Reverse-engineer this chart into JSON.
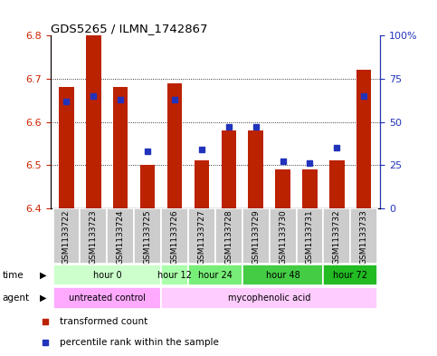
{
  "title": "GDS5265 / ILMN_1742867",
  "samples": [
    "GSM1133722",
    "GSM1133723",
    "GSM1133724",
    "GSM1133725",
    "GSM1133726",
    "GSM1133727",
    "GSM1133728",
    "GSM1133729",
    "GSM1133730",
    "GSM1133731",
    "GSM1133732",
    "GSM1133733"
  ],
  "bar_values": [
    6.68,
    6.8,
    6.68,
    6.5,
    6.69,
    6.51,
    6.58,
    6.58,
    6.49,
    6.49,
    6.51,
    6.72
  ],
  "percentile_values": [
    62,
    65,
    63,
    33,
    63,
    34,
    47,
    47,
    27,
    26,
    35,
    65
  ],
  "ylim_left": [
    6.4,
    6.8
  ],
  "ylim_right": [
    0,
    100
  ],
  "yticks_left": [
    6.4,
    6.5,
    6.6,
    6.7,
    6.8
  ],
  "yticks_right": [
    0,
    25,
    50,
    75,
    100
  ],
  "ytick_labels_right": [
    "0",
    "25",
    "50",
    "75",
    "100%"
  ],
  "grid_values": [
    6.5,
    6.6,
    6.7
  ],
  "bar_color": "#bb2200",
  "percentile_color": "#2233bb",
  "bar_width": 0.55,
  "time_group_cols": [
    {
      "label": "hour 0",
      "cols": [
        0,
        1,
        2,
        3
      ],
      "color": "#ccffcc"
    },
    {
      "label": "hour 12",
      "cols": [
        4
      ],
      "color": "#aaffaa"
    },
    {
      "label": "hour 24",
      "cols": [
        5,
        6
      ],
      "color": "#77ee77"
    },
    {
      "label": "hour 48",
      "cols": [
        7,
        8,
        9
      ],
      "color": "#44cc44"
    },
    {
      "label": "hour 72",
      "cols": [
        10,
        11
      ],
      "color": "#22bb22"
    }
  ],
  "agent_groups": [
    {
      "label": "untreated control",
      "cols": [
        0,
        1,
        2,
        3
      ],
      "color": "#ffaaff"
    },
    {
      "label": "mycophenolic acid",
      "cols": [
        4,
        5,
        6,
        7,
        8,
        9,
        10,
        11
      ],
      "color": "#ffccff"
    }
  ],
  "legend_items": [
    {
      "label": "transformed count",
      "color": "#bb2200"
    },
    {
      "label": "percentile rank within the sample",
      "color": "#2233bb"
    }
  ],
  "bg_color": "#ffffff",
  "plot_bg": "#ffffff",
  "tick_color_left": "#cc2200",
  "tick_color_right": "#2233bb",
  "sample_bg": "#cccccc"
}
